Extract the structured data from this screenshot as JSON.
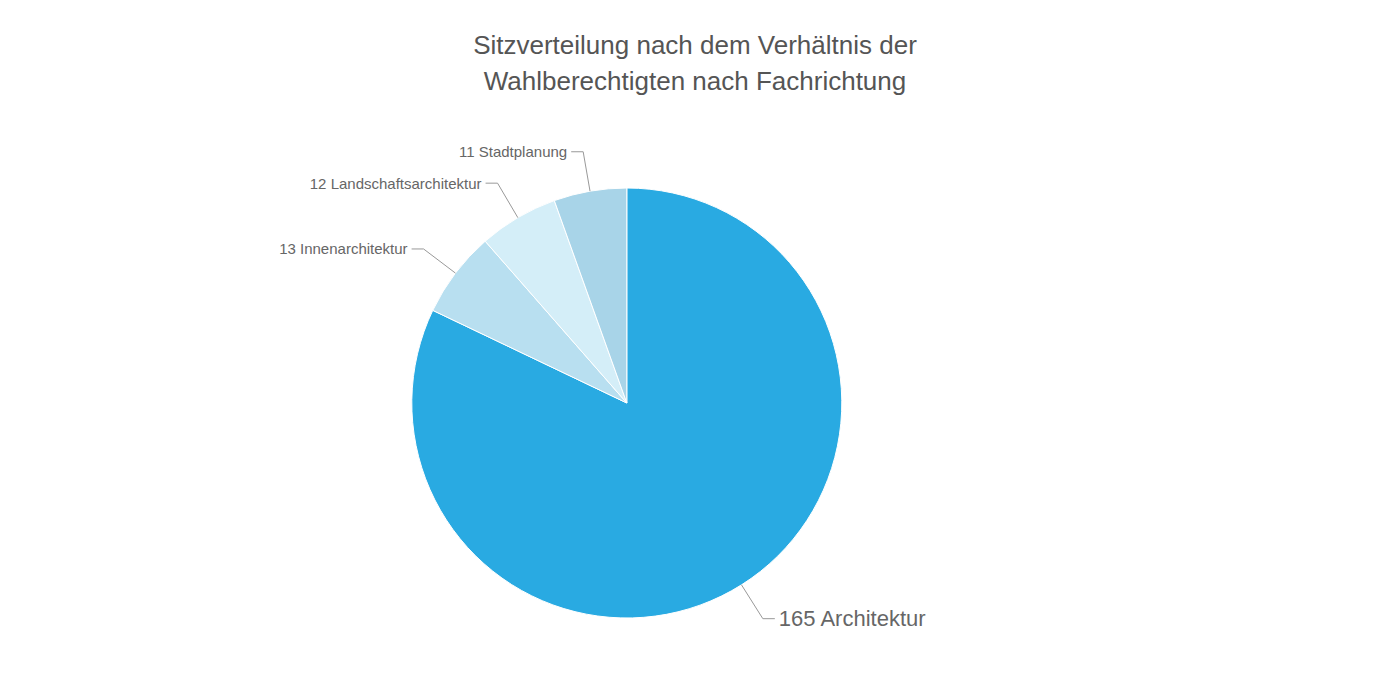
{
  "chart_data": {
    "type": "pie",
    "title": "Sitzverteilung nach dem Verhältnis der\nWahlberechtigten nach Fachrichtung",
    "categories": [
      "165 Architektur",
      "13 Innenarchitektur",
      "12 Landschaftsarchitektur",
      "11 Stadtplanung"
    ],
    "values": [
      165,
      13,
      12,
      11
    ],
    "colors": [
      "#29AAE2",
      "#B8DFF0",
      "#D4EEF8",
      "#A8D4E8"
    ]
  }
}
